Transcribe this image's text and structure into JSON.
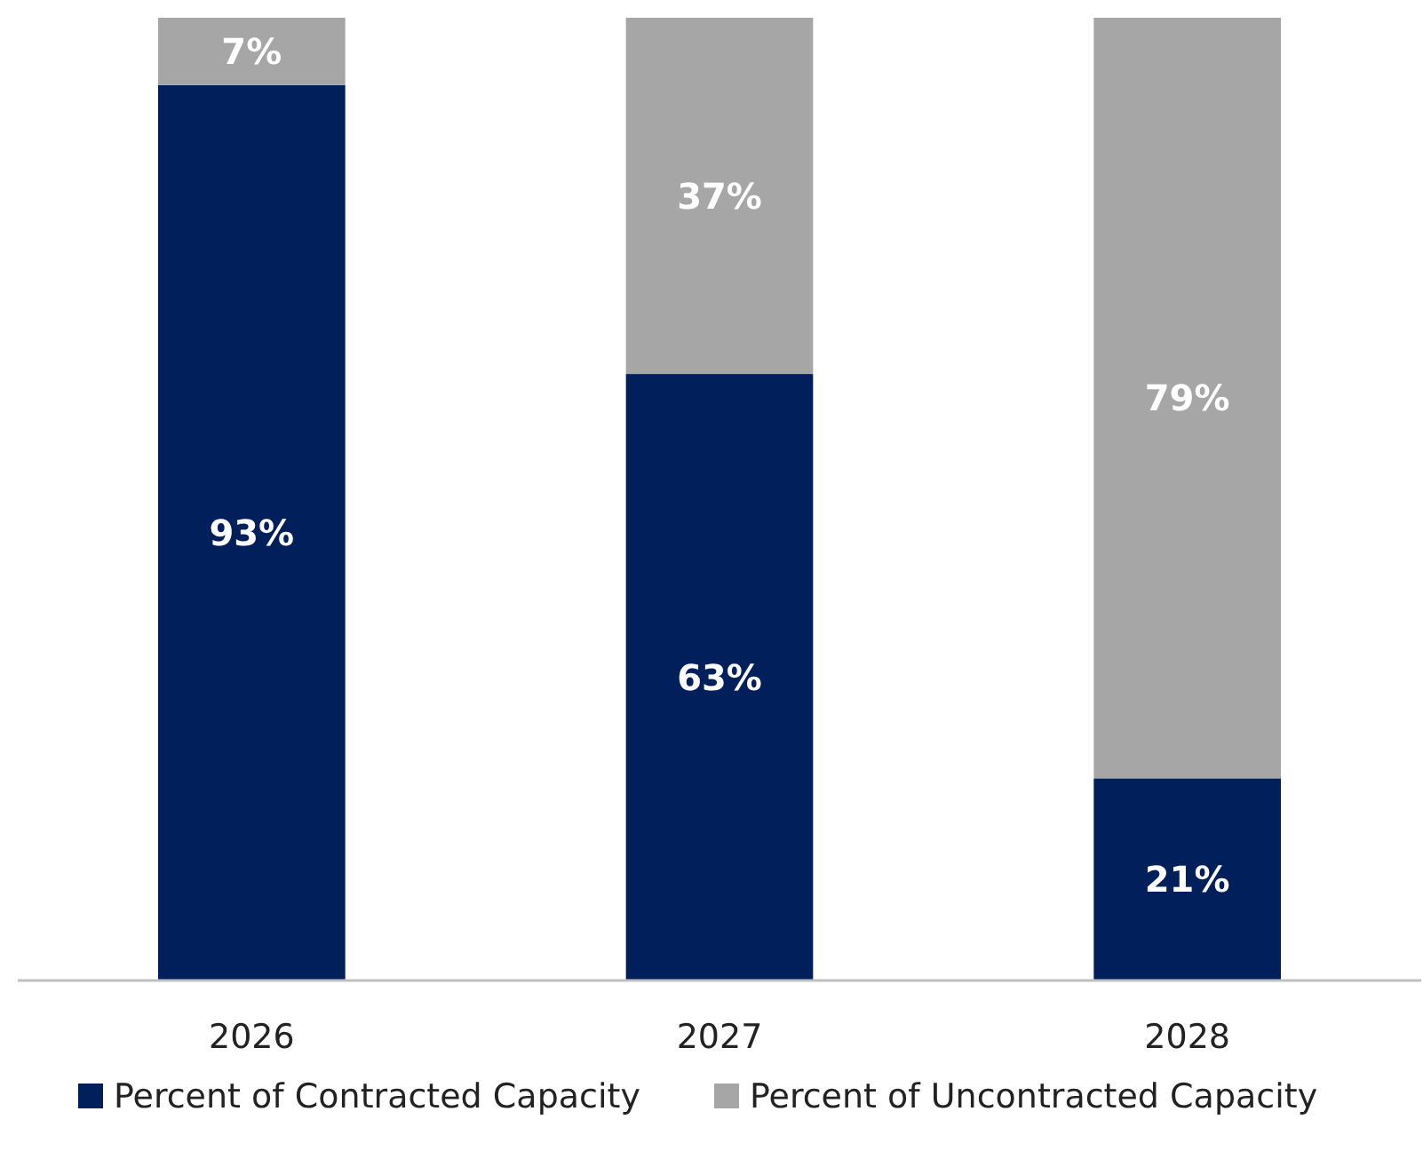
{
  "chart_data": {
    "type": "bar",
    "stacked": true,
    "legend": "bottom",
    "categories": [
      "2026",
      "2027",
      "2028"
    ],
    "series": [
      {
        "name": "Percent of Contracted Capacity",
        "color": "#001f5b",
        "values": [
          93,
          63,
          21
        ],
        "value_labels": [
          "93%",
          "63%",
          "21%"
        ]
      },
      {
        "name": "Percent of Uncontracted Capacity",
        "color": "#a6a6a6",
        "values": [
          7,
          37,
          79
        ],
        "value_labels": [
          "7%",
          "37%",
          "79%"
        ]
      }
    ]
  }
}
